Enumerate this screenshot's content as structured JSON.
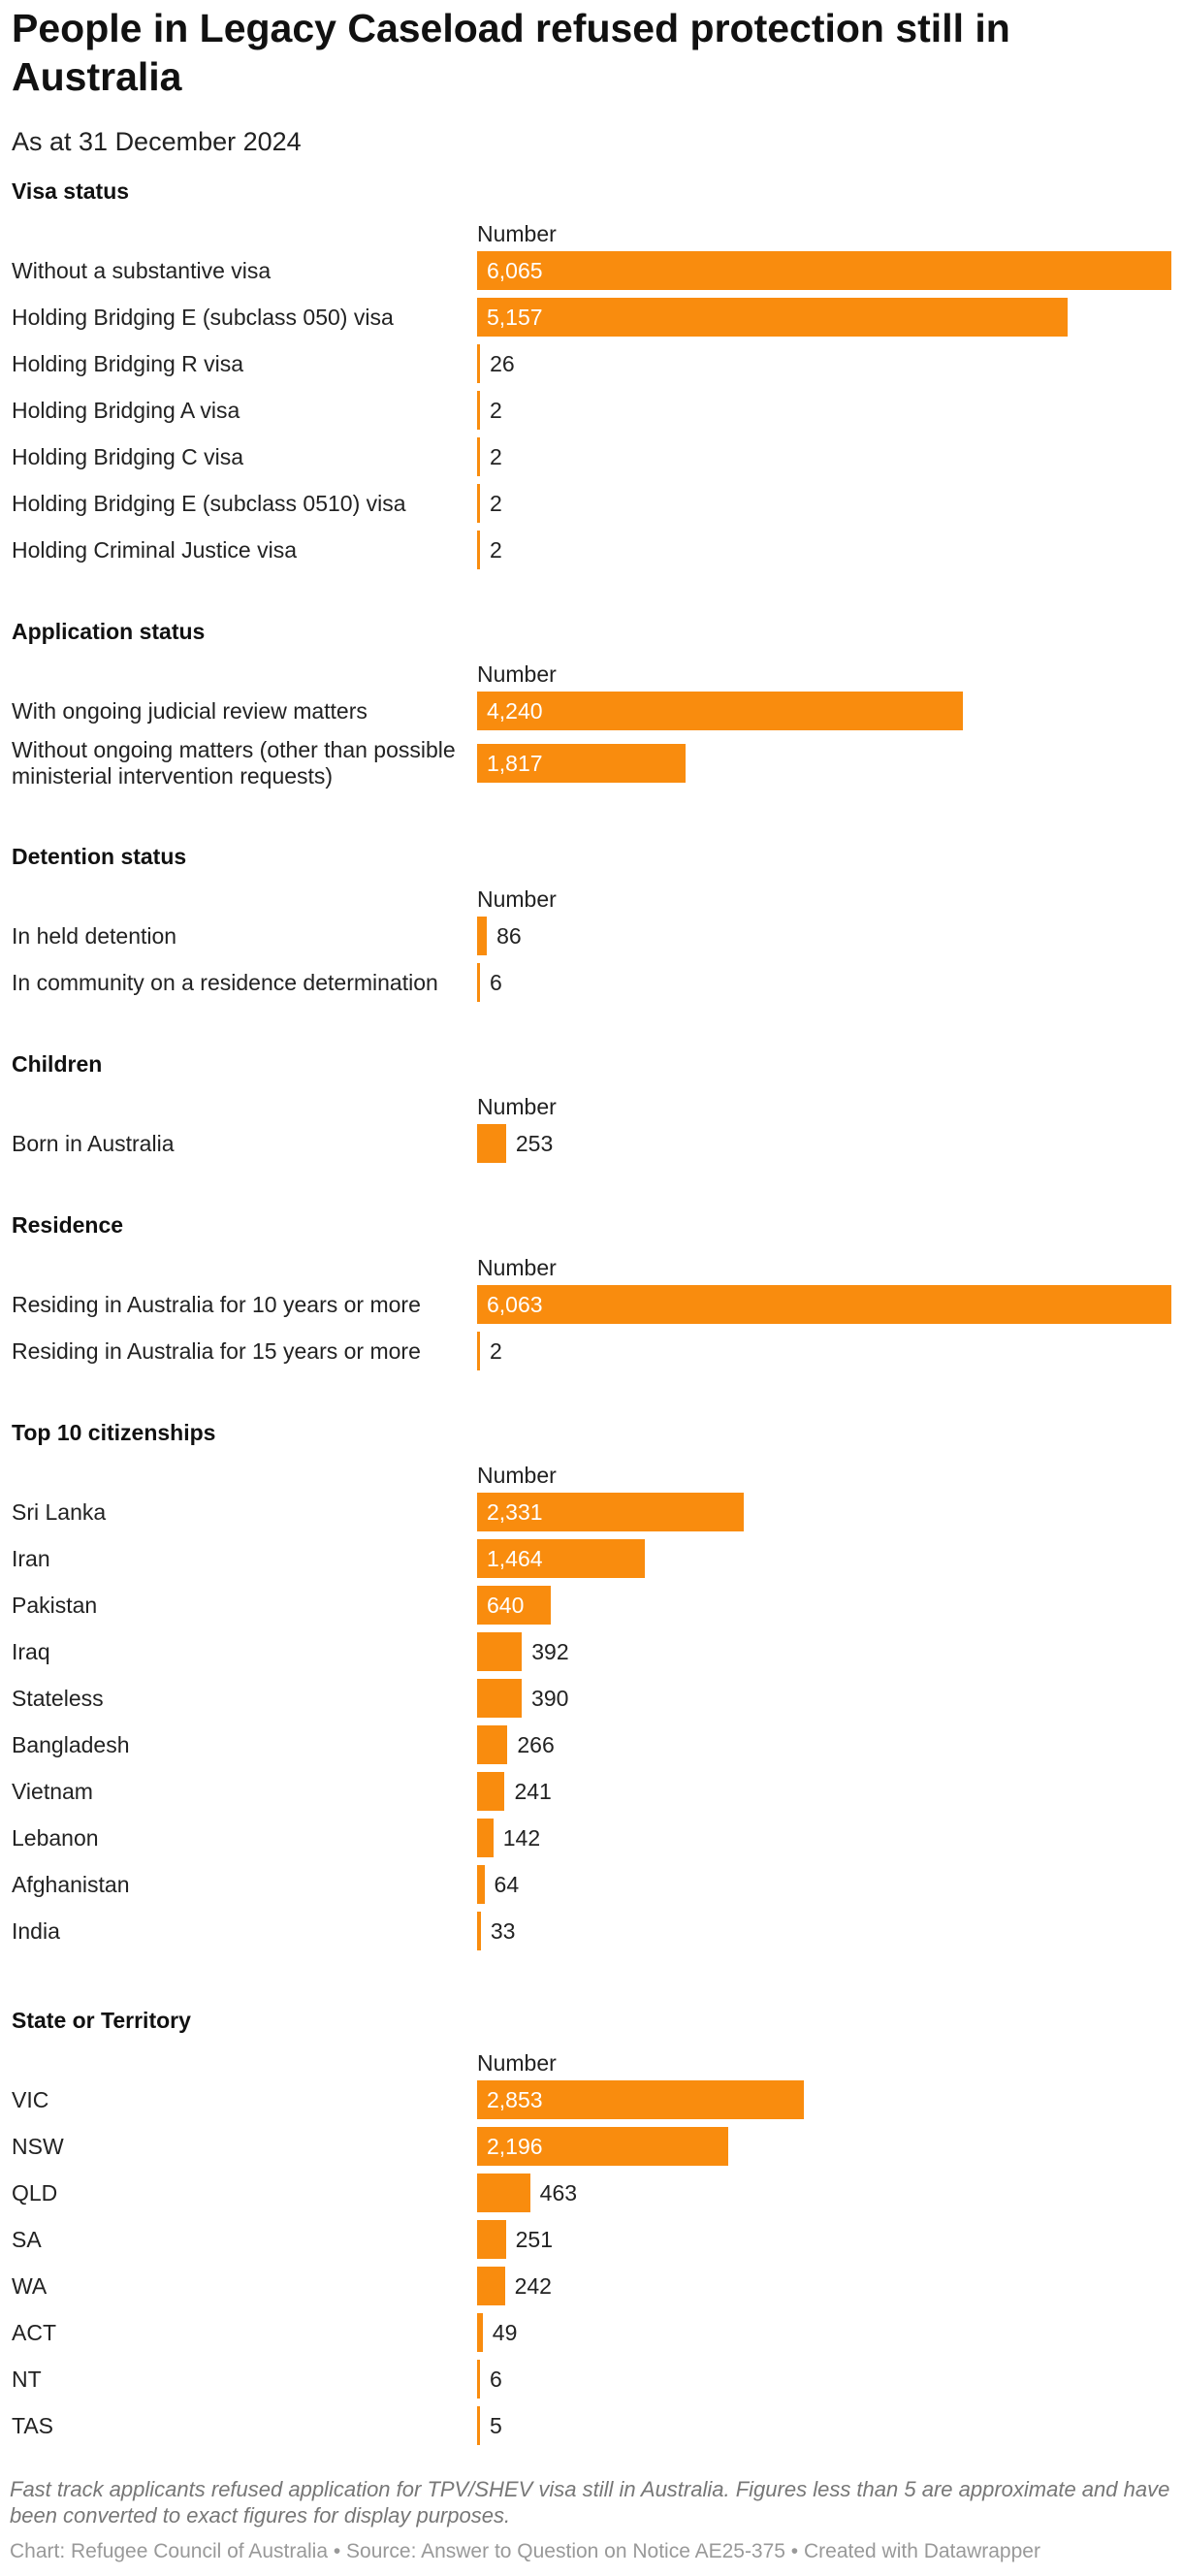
{
  "title": "People in Legacy Caseload refused protection still in Australia",
  "subtitle": "As at 31 December 2024",
  "note": "Fast track applicants refused application for TPV/SHEV visa still in Australia. Figures less than 5 are approximate and have been converted to exact figures for display purposes.",
  "source": "Chart: Refugee Council of Australia • Source: Answer to Question on Notice AE25-375 • Created with Datawrapper",
  "colors": {
    "bar": "#f98c0e",
    "text": "#222222",
    "muted": "#777777"
  },
  "chart_data": [
    {
      "type": "bar",
      "orientation": "horizontal",
      "title": "Visa status",
      "column_label": "Number",
      "xlim": [
        0,
        6065
      ],
      "categories": [
        "Without a substantive visa",
        "Holding Bridging E (subclass 050) visa",
        "Holding Bridging R visa",
        "Holding Bridging A visa",
        "Holding Bridging C visa",
        "Holding Bridging E (subclass 0510) visa",
        "Holding Criminal Justice visa"
      ],
      "values": [
        6065,
        5157,
        26,
        2,
        2,
        2,
        2
      ],
      "labels": [
        "6,065",
        "5,157",
        "26",
        "2",
        "2",
        "2",
        "2"
      ]
    },
    {
      "type": "bar",
      "orientation": "horizontal",
      "title": "Application status",
      "column_label": "Number",
      "xlim": [
        0,
        6065
      ],
      "categories": [
        "With ongoing judicial review matters",
        "Without ongoing matters (other than possible ministerial intervention requests)"
      ],
      "values": [
        4240,
        1817
      ],
      "labels": [
        "4,240",
        "1,817"
      ]
    },
    {
      "type": "bar",
      "orientation": "horizontal",
      "title": "Detention status",
      "column_label": "Number",
      "xlim": [
        0,
        6065
      ],
      "categories": [
        "In held detention",
        "In community on a residence determination"
      ],
      "values": [
        86,
        6
      ],
      "labels": [
        "86",
        "6"
      ]
    },
    {
      "type": "bar",
      "orientation": "horizontal",
      "title": "Children",
      "column_label": "Number",
      "xlim": [
        0,
        6065
      ],
      "categories": [
        "Born in Australia"
      ],
      "values": [
        253
      ],
      "labels": [
        "253"
      ]
    },
    {
      "type": "bar",
      "orientation": "horizontal",
      "title": "Residence",
      "column_label": "Number",
      "xlim": [
        0,
        6065
      ],
      "categories": [
        "Residing in Australia for 10 years or more",
        "Residing in Australia for 15 years or more"
      ],
      "values": [
        6063,
        2
      ],
      "labels": [
        "6,063",
        "2"
      ]
    },
    {
      "type": "bar",
      "orientation": "horizontal",
      "title": "Top 10 citizenships",
      "column_label": "Number",
      "xlim": [
        0,
        6065
      ],
      "categories": [
        "Sri Lanka",
        "Iran",
        "Pakistan",
        "Iraq",
        "Stateless",
        "Bangladesh",
        "Vietnam",
        "Lebanon",
        "Afghanistan",
        "India"
      ],
      "values": [
        2331,
        1464,
        640,
        392,
        390,
        266,
        241,
        142,
        64,
        33
      ],
      "labels": [
        "2,331",
        "1,464",
        "640",
        "392",
        "390",
        "266",
        "241",
        "142",
        "64",
        "33"
      ]
    },
    {
      "type": "bar",
      "orientation": "horizontal",
      "title": "State or Territory",
      "column_label": "Number",
      "xlim": [
        0,
        6065
      ],
      "categories": [
        "VIC",
        "NSW",
        "QLD",
        "SA",
        "WA",
        "ACT",
        "NT",
        "TAS"
      ],
      "values": [
        2853,
        2196,
        463,
        251,
        242,
        49,
        6,
        5
      ],
      "labels": [
        "2,853",
        "2,196",
        "463",
        "251",
        "242",
        "49",
        "6",
        "5"
      ]
    }
  ]
}
